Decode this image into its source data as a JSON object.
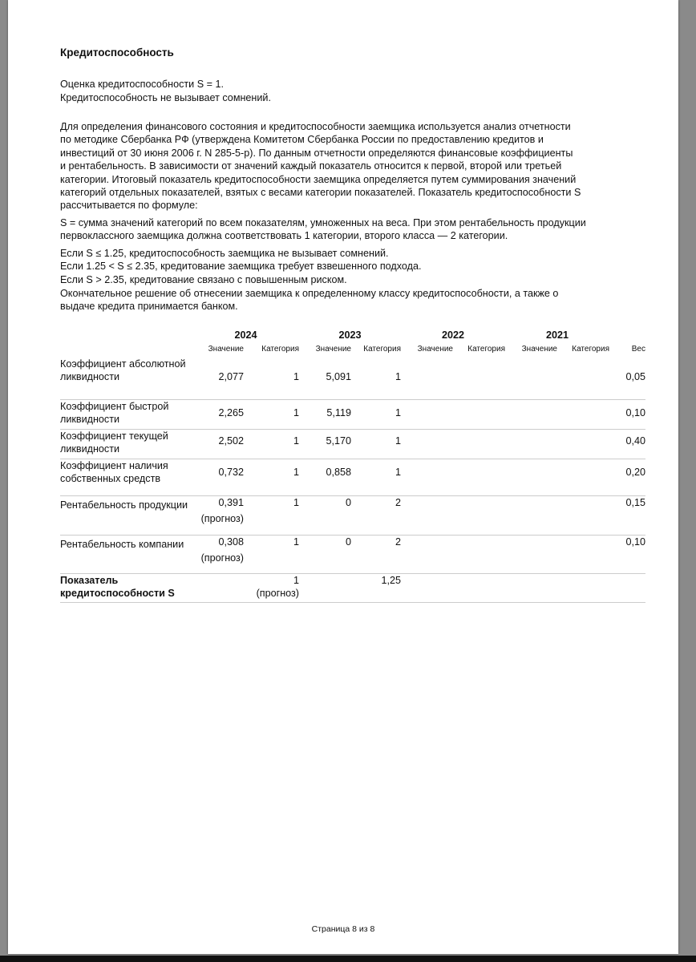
{
  "title": "Кредитоспособность",
  "summary": [
    "Оценка кредитоспособности S = 1.",
    "Кредитоспособность не вызывает сомнений."
  ],
  "paragraph1": [
    "Для определения финансового состояния и кредитоспособности заемщика используется анализ отчетности",
    "по методике Сбербанка РФ (утверждена Комитетом Сбербанка России по предоставлению кредитов и",
    "инвестиций от 30 июня 2006 г. N 285-5-р). По данным отчетности определяются финансовые коэффициенты",
    "и рентабельность. В зависимости от значений каждый показатель относится к первой, второй или третьей",
    "категории. Итоговый показатель кредитоспособности заемщика определяется путем суммирования значений",
    "категорий отдельных показателей, взятых с весами категории показателей. Показатель кредитоспособности S",
    "рассчитывается по формуле:"
  ],
  "paragraph2": [
    "S = сумма значений категорий по всем показателям, умноженных на веса. При этом рентабельность продукции",
    "первоклассного заемщика должна соответствовать 1 категории, второго класса — 2 категории."
  ],
  "paragraph3": [
    "Если S ≤ 1.25, кредитоспособность заемщика не вызывает сомнений.",
    "Если 1.25 < S ≤ 2.35, кредитование заемщика требует взвешенного подхода.",
    "Если S > 2.35, кредитование связано с повышенным риском.",
    "Окончательное решение об отнесении заемщика к определенному классу кредитоспособности, а также о",
    "выдаче кредита принимается банком."
  ],
  "table": {
    "years": [
      "2024",
      "2023",
      "2022",
      "2021"
    ],
    "sub_headers": [
      "Значение",
      "Категория",
      "Значение",
      "Категория",
      "Значение",
      "Категория",
      "Значение",
      "Категория",
      "Вес"
    ],
    "rows": [
      {
        "label": "Коэффициент абсолютной ликвидности",
        "cells": [
          "2,077",
          "1",
          "5,091",
          "1",
          "",
          "",
          "",
          "",
          "0,05"
        ]
      },
      {
        "label": "Коэффициент быстрой ликвидности",
        "cells": [
          "2,265",
          "1",
          "5,119",
          "1",
          "",
          "",
          "",
          "",
          "0,10"
        ]
      },
      {
        "label": "Коэффициент текущей ликвидности",
        "cells": [
          "2,502",
          "1",
          "5,170",
          "1",
          "",
          "",
          "",
          "",
          "0,40"
        ]
      },
      {
        "label": "Коэффициент наличия собственных средств",
        "cells": [
          "0,732",
          "1",
          "0,858",
          "1",
          "",
          "",
          "",
          "",
          "0,20"
        ]
      },
      {
        "label": "Рентабельность продукции",
        "cells": [
          "0,391",
          "1",
          "0",
          "2",
          "",
          "",
          "",
          "",
          "0,15"
        ],
        "note0": "(прогноз)"
      },
      {
        "label": "Рентабельность компании",
        "cells": [
          "0,308",
          "1",
          "0",
          "2",
          "",
          "",
          "",
          "",
          "0,10"
        ],
        "note0": "(прогноз)"
      }
    ],
    "total": {
      "label": "Показатель кредитоспособности S",
      "v2024": "1",
      "note2024": "(прогноз)",
      "v2023": "1,25"
    }
  },
  "footer": "Страница 8 из 8"
}
